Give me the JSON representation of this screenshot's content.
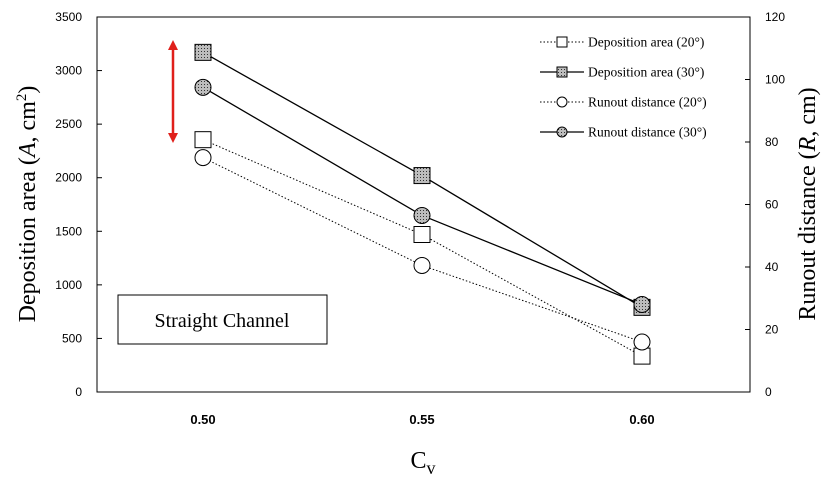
{
  "chart_data": {
    "type": "line",
    "categories": [
      "0.50",
      "0.55",
      "0.60"
    ],
    "x": [
      0.5,
      0.55,
      0.6
    ],
    "xlabel": {
      "main": "C",
      "sub": "v"
    },
    "ylabel_left": {
      "pre": "Deposition area (",
      "italic": "A",
      "post": ", cm",
      "sup": "2",
      "close": ")"
    },
    "ylabel_right": {
      "pre": "Runout distance (",
      "italic": "R",
      "post": ", cm)"
    },
    "ylim_left": [
      0,
      3500
    ],
    "yticks_left": [
      0,
      500,
      1000,
      1500,
      2000,
      2500,
      3000,
      3500
    ],
    "ylim_right": [
      0,
      120
    ],
    "yticks_right": [
      0,
      20,
      40,
      60,
      80,
      100,
      120
    ],
    "grid": false,
    "legend_position": "top-right",
    "series": [
      {
        "name": "Deposition area (20°)",
        "axis": "left",
        "values": [
          2355,
          1470,
          335
        ],
        "marker": "square",
        "fill": "#ffffff",
        "line": "dotted",
        "color": "#000000"
      },
      {
        "name": "Deposition area (30°)",
        "axis": "left",
        "values": [
          3170,
          2020,
          790
        ],
        "marker": "square",
        "fill": "dotted-gray",
        "line": "solid",
        "color": "#000000"
      },
      {
        "name": "Runout distance (20°)",
        "axis": "right",
        "values": [
          75,
          40.5,
          16
        ],
        "marker": "circle",
        "fill": "#ffffff",
        "line": "dotted",
        "color": "#000000"
      },
      {
        "name": "Runout distance (30°)",
        "axis": "right",
        "values": [
          97.5,
          56.5,
          28
        ],
        "marker": "circle",
        "fill": "dotted-gray",
        "line": "solid",
        "color": "#000000"
      }
    ],
    "annotations": {
      "box_text": "Straight Channel",
      "arrow_color": "#e0201b"
    }
  }
}
